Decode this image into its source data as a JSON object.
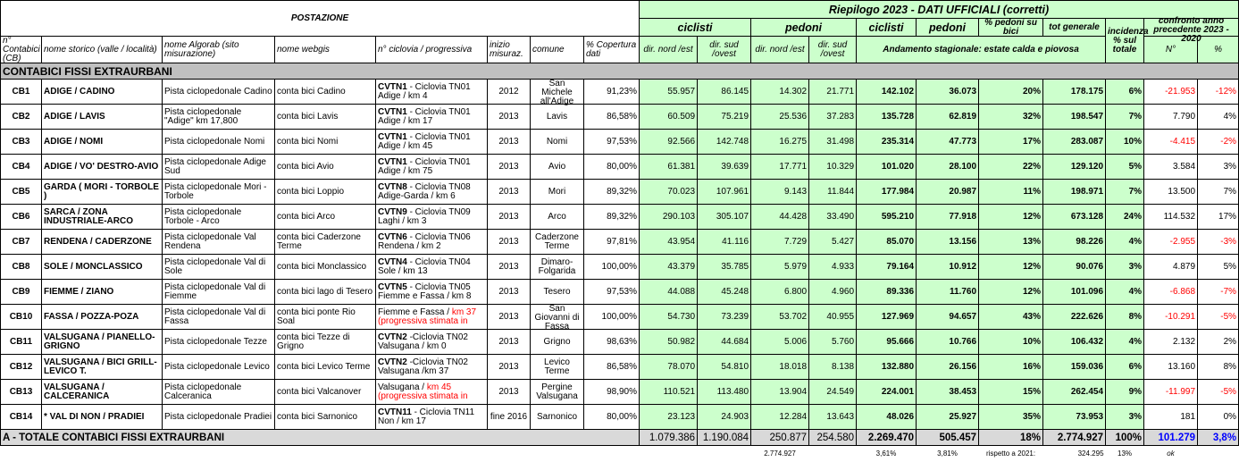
{
  "header": {
    "postazione": "POSTAZIONE",
    "riepilogo": "Riepilogo 2023 - DATI UFFICIALI (corretti)",
    "ciclisti_dir": "ciclisti",
    "pedoni_dir": "pedoni",
    "ciclisti": "ciclisti",
    "pedoni": "pedoni",
    "perc_pedoni": "% pedoni su bici",
    "tot_generale": "tot generale",
    "incidenza": "incidenza % sul totale",
    "confronto": "confronto anno precedente 2023 - 2020",
    "columns": [
      "n° Contabici (CB)",
      "nome storico (valle / località)",
      "nome Algorab (sito misurazione)",
      "nome webgis",
      "n° ciclovia / progressiva",
      "inizio misuraz.",
      "comune",
      "% Copertura dati",
      "dir. nord /est",
      "dir. sud /ovest",
      "dir. nord /est",
      "dir. sud /ovest"
    ],
    "andamento": "Andamento stagionale: estate calda e piovosa",
    "n": "N°",
    "perc": "%"
  },
  "section": "CONTABICI FISSI EXTRAURBANI",
  "rows": [
    [
      "CB1",
      "ADIGE / CADINO",
      "Pista ciclopedonale Cadino",
      "conta bici Cadino",
      {
        "bold": "CVTN1",
        "text": "- Ciclovia TN01 Adige / km 4"
      },
      "2012",
      "San Michele all'Adige",
      "91,23%",
      "55.957",
      "86.145",
      "14.302",
      "21.771",
      "142.102",
      "36.073",
      "20%",
      "178.175",
      "6%",
      "-21.953",
      "-12%"
    ],
    [
      "CB2",
      "ADIGE / LAVIS",
      "Pista ciclopedonale \"Adige\" km 17,800",
      "conta bici Lavis",
      {
        "bold": "CVTN1",
        "text": "- Ciclovia TN01 Adige / km 17"
      },
      "2013",
      "Lavis",
      "86,58%",
      "60.509",
      "75.219",
      "25.536",
      "37.283",
      "135.728",
      "62.819",
      "32%",
      "198.547",
      "7%",
      "7.790",
      "4%"
    ],
    [
      "CB3",
      "ADIGE / NOMI",
      "Pista ciclopedonale Nomi",
      "conta bici Nomi",
      {
        "bold": "CVTN1",
        "text": "- Ciclovia TN01 Adige / km 45"
      },
      "2013",
      "Nomi",
      "97,53%",
      "92.566",
      "142.748",
      "16.275",
      "31.498",
      "235.314",
      "47.773",
      "17%",
      "283.087",
      "10%",
      "-4.415",
      "-2%"
    ],
    [
      "CB4",
      "ADIGE / VO' DESTRO-AVIO",
      "Pista ciclopedonale Adige Sud",
      "conta bici Avio",
      {
        "bold": "CVTN1",
        "text": "- Ciclovia TN01 Adige / km 75"
      },
      "2013",
      "Avio",
      "80,00%",
      "61.381",
      "39.639",
      "17.771",
      "10.329",
      "101.020",
      "28.100",
      "22%",
      "129.120",
      "5%",
      "3.584",
      "3%"
    ],
    [
      "CB5",
      "GARDA ( MORI - TORBOLE )",
      "Pista ciclopedonale Mori - Torbole",
      "conta bici Loppio",
      {
        "bold": "CVTN8",
        "text": "- Ciclovia TN08 Adige-Garda / km 6"
      },
      "2013",
      "Mori",
      "89,32%",
      "70.023",
      "107.961",
      "9.143",
      "11.844",
      "177.984",
      "20.987",
      "11%",
      "198.971",
      "7%",
      "13.500",
      "7%"
    ],
    [
      "CB6",
      "SARCA / ZONA INDUSTRIALE-ARCO",
      "Pista ciclopedonale Torbole - Arco",
      "conta bici Arco",
      {
        "bold": "CVTN9",
        "text": "- Ciclovia TN09 Laghi / km 3"
      },
      "2013",
      "Arco",
      "89,32%",
      "290.103",
      "305.107",
      "44.428",
      "33.490",
      "595.210",
      "77.918",
      "12%",
      "673.128",
      "24%",
      "114.532",
      "17%"
    ],
    [
      "CB7",
      "RENDENA / CADERZONE",
      "Pista ciclopedonale Val Rendena",
      "conta bici Caderzone Terme",
      {
        "bold": "CVTN6",
        "text": "- Ciclovia TN06 Rendena / km 2"
      },
      "2013",
      "Caderzone Terme",
      "97,81%",
      "43.954",
      "41.116",
      "7.729",
      "5.427",
      "85.070",
      "13.156",
      "13%",
      "98.226",
      "4%",
      "-2.955",
      "-3%"
    ],
    [
      "CB8",
      "SOLE / MONCLASSICO",
      "Pista ciclopedonale Val di Sole",
      "conta bici Monclassico",
      {
        "bold": "CVTN4",
        "text": "- Ciclovia TN04 Sole / km 13"
      },
      "2013",
      "Dimaro-Folgarida",
      "100,00%",
      "43.379",
      "35.785",
      "5.979",
      "4.933",
      "79.164",
      "10.912",
      "12%",
      "90.076",
      "3%",
      "4.879",
      "5%"
    ],
    [
      "CB9",
      "FIEMME / ZIANO",
      "Pista ciclopedonale Val di Fiemme",
      "conta bici lago di Tesero",
      {
        "bold": "CVTN5",
        "text": "- Ciclovia TN05 Fiemme e Fassa / km 8"
      },
      "2013",
      "Tesero",
      "97,53%",
      "44.088",
      "45.248",
      "6.800",
      "4.960",
      "89.336",
      "11.760",
      "12%",
      "101.096",
      "4%",
      "-6.868",
      "-7%"
    ],
    [
      "CB10",
      "FASSA / POZZA-POZA",
      "Pista ciclopedonale Val di Fassa",
      "conta bici ponte Rio Soal",
      {
        "text": "Fiemme e Fassa /",
        "red": "km 37 (progressiva stimata in"
      },
      "2013",
      "San Giovanni di Fassa",
      "100,00%",
      "54.730",
      "73.239",
      "53.702",
      "40.955",
      "127.969",
      "94.657",
      "43%",
      "222.626",
      "8%",
      "-10.291",
      "-5%"
    ],
    [
      "CB11",
      "VALSUGANA / PIANELLO-GRIGNO",
      "Pista ciclopedonale Tezze",
      "conta bici Tezze di Grigno",
      {
        "bold": "CVTN2",
        "text": "-Ciclovia TN02 Valsugana / km 0"
      },
      "2013",
      "Grigno",
      "98,63%",
      "50.982",
      "44.684",
      "5.006",
      "5.760",
      "95.666",
      "10.766",
      "10%",
      "106.432",
      "4%",
      "2.132",
      "2%"
    ],
    [
      "CB12",
      "VALSUGANA / BICI GRILL-LEVICO T.",
      "Pista ciclopedonale Levico",
      "conta bici Levico Terme",
      {
        "bold": "CVTN2",
        "text": "-Ciclovia TN02 Valsugana /km 37"
      },
      "2013",
      "Levico Terme",
      "86,58%",
      "78.070",
      "54.810",
      "18.018",
      "8.138",
      "132.880",
      "26.156",
      "16%",
      "159.036",
      "6%",
      "13.160",
      "8%"
    ],
    [
      "CB13",
      "VALSUGANA / CALCERANICA",
      "Pista ciclopedonale Calceranica",
      "conta bici Valcanover",
      {
        "text": "Valsugana /",
        "red": "km 45 (progressiva stimata in"
      },
      "2013",
      "Pergine Valsugana",
      "98,90%",
      "110.521",
      "113.480",
      "13.904",
      "24.549",
      "224.001",
      "38.453",
      "15%",
      "262.454",
      "9%",
      "-11.997",
      "-5%"
    ],
    [
      "CB14",
      "* VAL DI NON / PRADIEI",
      "Pista ciclopedonale Pradiei",
      "conta bici Sarnonico",
      {
        "bold": "CVTN11",
        "text": "- Ciclovia TN11 Non / km 17"
      },
      "fine 2016",
      "Sarnonico",
      "80,00%",
      "23.123",
      "24.903",
      "12.284",
      "13.643",
      "48.026",
      "25.927",
      "35%",
      "73.953",
      "3%",
      "181",
      "0%"
    ]
  ],
  "total": {
    "label": "A - TOTALE CONTABICI FISSI EXTRAURBANI",
    "values": [
      "1.079.386",
      "1.190.084",
      "250.877",
      "254.580",
      "2.269.470",
      "505.457",
      "18%",
      "2.774.927",
      "100%",
      "101.279",
      "3,8%"
    ]
  },
  "footer": {
    "totale": "2.774.927",
    "perc_ciclisti": "3,61%",
    "perc_pedoni": "3,81%",
    "rispetto": "rispetto a 2021:",
    "differenza": "324.295",
    "perc": "13%",
    "esito": "ok"
  }
}
